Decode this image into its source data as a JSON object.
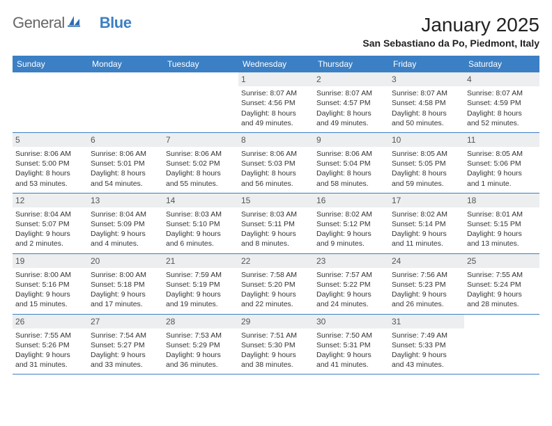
{
  "logo": {
    "text1": "General",
    "text2": "Blue"
  },
  "title": "January 2025",
  "location": "San Sebastiano da Po, Piedmont, Italy",
  "colors": {
    "header_bg": "#3b7fc4",
    "header_text": "#ffffff",
    "daynum_bg": "#eceeef",
    "border": "#3b7fc4"
  },
  "day_headers": [
    "Sunday",
    "Monday",
    "Tuesday",
    "Wednesday",
    "Thursday",
    "Friday",
    "Saturday"
  ],
  "weeks": [
    [
      null,
      null,
      null,
      {
        "n": "1",
        "sr": "8:07 AM",
        "ss": "4:56 PM",
        "dl1": "Daylight: 8 hours",
        "dl2": "and 49 minutes."
      },
      {
        "n": "2",
        "sr": "8:07 AM",
        "ss": "4:57 PM",
        "dl1": "Daylight: 8 hours",
        "dl2": "and 49 minutes."
      },
      {
        "n": "3",
        "sr": "8:07 AM",
        "ss": "4:58 PM",
        "dl1": "Daylight: 8 hours",
        "dl2": "and 50 minutes."
      },
      {
        "n": "4",
        "sr": "8:07 AM",
        "ss": "4:59 PM",
        "dl1": "Daylight: 8 hours",
        "dl2": "and 52 minutes."
      }
    ],
    [
      {
        "n": "5",
        "sr": "8:06 AM",
        "ss": "5:00 PM",
        "dl1": "Daylight: 8 hours",
        "dl2": "and 53 minutes."
      },
      {
        "n": "6",
        "sr": "8:06 AM",
        "ss": "5:01 PM",
        "dl1": "Daylight: 8 hours",
        "dl2": "and 54 minutes."
      },
      {
        "n": "7",
        "sr": "8:06 AM",
        "ss": "5:02 PM",
        "dl1": "Daylight: 8 hours",
        "dl2": "and 55 minutes."
      },
      {
        "n": "8",
        "sr": "8:06 AM",
        "ss": "5:03 PM",
        "dl1": "Daylight: 8 hours",
        "dl2": "and 56 minutes."
      },
      {
        "n": "9",
        "sr": "8:06 AM",
        "ss": "5:04 PM",
        "dl1": "Daylight: 8 hours",
        "dl2": "and 58 minutes."
      },
      {
        "n": "10",
        "sr": "8:05 AM",
        "ss": "5:05 PM",
        "dl1": "Daylight: 8 hours",
        "dl2": "and 59 minutes."
      },
      {
        "n": "11",
        "sr": "8:05 AM",
        "ss": "5:06 PM",
        "dl1": "Daylight: 9 hours",
        "dl2": "and 1 minute."
      }
    ],
    [
      {
        "n": "12",
        "sr": "8:04 AM",
        "ss": "5:07 PM",
        "dl1": "Daylight: 9 hours",
        "dl2": "and 2 minutes."
      },
      {
        "n": "13",
        "sr": "8:04 AM",
        "ss": "5:09 PM",
        "dl1": "Daylight: 9 hours",
        "dl2": "and 4 minutes."
      },
      {
        "n": "14",
        "sr": "8:03 AM",
        "ss": "5:10 PM",
        "dl1": "Daylight: 9 hours",
        "dl2": "and 6 minutes."
      },
      {
        "n": "15",
        "sr": "8:03 AM",
        "ss": "5:11 PM",
        "dl1": "Daylight: 9 hours",
        "dl2": "and 8 minutes."
      },
      {
        "n": "16",
        "sr": "8:02 AM",
        "ss": "5:12 PM",
        "dl1": "Daylight: 9 hours",
        "dl2": "and 9 minutes."
      },
      {
        "n": "17",
        "sr": "8:02 AM",
        "ss": "5:14 PM",
        "dl1": "Daylight: 9 hours",
        "dl2": "and 11 minutes."
      },
      {
        "n": "18",
        "sr": "8:01 AM",
        "ss": "5:15 PM",
        "dl1": "Daylight: 9 hours",
        "dl2": "and 13 minutes."
      }
    ],
    [
      {
        "n": "19",
        "sr": "8:00 AM",
        "ss": "5:16 PM",
        "dl1": "Daylight: 9 hours",
        "dl2": "and 15 minutes."
      },
      {
        "n": "20",
        "sr": "8:00 AM",
        "ss": "5:18 PM",
        "dl1": "Daylight: 9 hours",
        "dl2": "and 17 minutes."
      },
      {
        "n": "21",
        "sr": "7:59 AM",
        "ss": "5:19 PM",
        "dl1": "Daylight: 9 hours",
        "dl2": "and 19 minutes."
      },
      {
        "n": "22",
        "sr": "7:58 AM",
        "ss": "5:20 PM",
        "dl1": "Daylight: 9 hours",
        "dl2": "and 22 minutes."
      },
      {
        "n": "23",
        "sr": "7:57 AM",
        "ss": "5:22 PM",
        "dl1": "Daylight: 9 hours",
        "dl2": "and 24 minutes."
      },
      {
        "n": "24",
        "sr": "7:56 AM",
        "ss": "5:23 PM",
        "dl1": "Daylight: 9 hours",
        "dl2": "and 26 minutes."
      },
      {
        "n": "25",
        "sr": "7:55 AM",
        "ss": "5:24 PM",
        "dl1": "Daylight: 9 hours",
        "dl2": "and 28 minutes."
      }
    ],
    [
      {
        "n": "26",
        "sr": "7:55 AM",
        "ss": "5:26 PM",
        "dl1": "Daylight: 9 hours",
        "dl2": "and 31 minutes."
      },
      {
        "n": "27",
        "sr": "7:54 AM",
        "ss": "5:27 PM",
        "dl1": "Daylight: 9 hours",
        "dl2": "and 33 minutes."
      },
      {
        "n": "28",
        "sr": "7:53 AM",
        "ss": "5:29 PM",
        "dl1": "Daylight: 9 hours",
        "dl2": "and 36 minutes."
      },
      {
        "n": "29",
        "sr": "7:51 AM",
        "ss": "5:30 PM",
        "dl1": "Daylight: 9 hours",
        "dl2": "and 38 minutes."
      },
      {
        "n": "30",
        "sr": "7:50 AM",
        "ss": "5:31 PM",
        "dl1": "Daylight: 9 hours",
        "dl2": "and 41 minutes."
      },
      {
        "n": "31",
        "sr": "7:49 AM",
        "ss": "5:33 PM",
        "dl1": "Daylight: 9 hours",
        "dl2": "and 43 minutes."
      },
      null
    ]
  ],
  "labels": {
    "sunrise_prefix": "Sunrise: ",
    "sunset_prefix": "Sunset: "
  }
}
